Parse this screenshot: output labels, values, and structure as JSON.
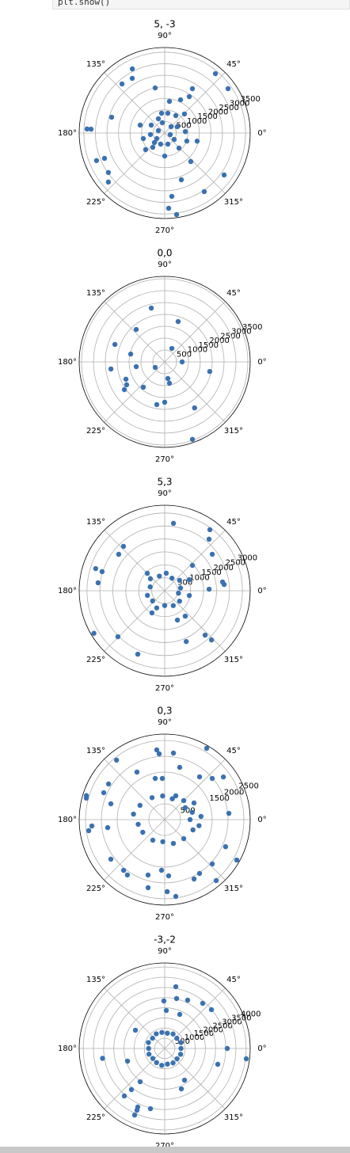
{
  "code_fragment": "plt.show()",
  "chart_data": [
    {
      "type": "polar",
      "title": "5, -3",
      "color": "#3a72b0",
      "rlim": [
        0,
        3700
      ],
      "rticks": [
        500,
        1000,
        1500,
        2000,
        2500,
        3000,
        3500
      ],
      "thetaticks": [
        {
          "value": 0,
          "label": "0°"
        },
        {
          "value": 45,
          "label": "45°"
        },
        {
          "value": 90,
          "label": "90°"
        },
        {
          "value": 135,
          "label": "135°"
        },
        {
          "value": 180,
          "label": "180°"
        },
        {
          "value": 225,
          "label": "225°"
        },
        {
          "value": 270,
          "label": "270°"
        },
        {
          "value": 315,
          "label": "315°"
        }
      ],
      "theta": [
        116.8,
        120.7,
        131,
        101.9,
        58,
        49.5,
        35,
        56,
        64.5,
        81.5,
        163.4,
        177,
        177,
        202,
        202.8,
        215,
        221,
        276.4,
        289.6,
        312.5,
        346,
        304,
        324.8,
        273,
        278.3,
        99,
        81,
        57.5,
        44,
        162,
        149.5,
        194.5,
        230,
        221,
        270,
        313.5,
        340,
        4,
        159.4,
        344,
        326,
        215,
        103,
        45,
        186,
        222.7,
        250,
        286,
        26.6,
        114
      ],
      "r": [
        3110,
        2750,
        2816,
        1995,
        2262,
        3378,
        3346,
        1900,
        1593,
        1385,
        2395,
        3362,
        3190,
        3181,
        2826,
        2975,
        3230,
        2758,
        2146,
        1673,
        1446,
        3060,
        3146,
        3259,
        3565,
        867,
        867,
        894,
        1188,
        1116,
        676,
        956,
        803,
        1093,
        994,
        897,
        1019,
        894,
        293,
        249,
        494,
        418,
        457,
        388,
        620,
        606,
        510,
        499,
        613,
        675
      ]
    },
    {
      "type": "polar",
      "title": "0,0",
      "color": "#3a72b0",
      "rlim": [
        0,
        3600
      ],
      "rticks": [
        500,
        1000,
        1500,
        2000,
        2500,
        3000,
        3500
      ],
      "thetaticks": [
        {
          "value": 0,
          "label": "0°"
        },
        {
          "value": 45,
          "label": "45°"
        },
        {
          "value": 90,
          "label": "90°"
        },
        {
          "value": 135,
          "label": "135°"
        },
        {
          "value": 180,
          "label": "180°"
        },
        {
          "value": 225,
          "label": "225°"
        },
        {
          "value": 270,
          "label": "270°"
        },
        {
          "value": 315,
          "label": "315°"
        }
      ],
      "theta": [
        104,
        71.6,
        131.3,
        160.7,
        167,
        62,
        0,
        348,
        187.5,
        189.5,
        210,
        204,
        211,
        214.5,
        229.8,
        280.8,
        282.5,
        259.5,
        270,
        303,
        289.7
      ],
      "r": [
        2334,
        1791,
        1818,
        2221,
        1469,
        640,
        733,
        1938,
        2284,
        1215,
        463,
        1788,
        1868,
        2061,
        1395,
        713,
        922,
        1828,
        1698,
        2308,
        3463
      ]
    },
    {
      "type": "polar",
      "title": "5,3",
      "color": "#3a72b0",
      "rlim": [
        0,
        3300
      ],
      "rticks": [
        500,
        1000,
        1500,
        2000,
        2500,
        3000
      ],
      "thetaticks": [
        {
          "value": 0,
          "label": "0°"
        },
        {
          "value": 45,
          "label": "45°"
        },
        {
          "value": 90,
          "label": "90°"
        },
        {
          "value": 135,
          "label": "135°"
        },
        {
          "value": 180,
          "label": "180°"
        },
        {
          "value": 225,
          "label": "225°"
        },
        {
          "value": 270,
          "label": "270°"
        },
        {
          "value": 315,
          "label": "315°"
        }
      ],
      "theta": [
        82.6,
        53.5,
        49.3,
        37.5,
        42.4,
        132.9,
        141.6,
        162.2,
        163,
        173.2,
        24.3,
        349,
        2,
        8.6,
        6,
        211,
        224.5,
        247,
        293,
        312.3,
        313.6,
        293.4,
        309,
        135,
        240,
        10,
        35,
        60,
        85,
        110,
        140,
        165,
        195,
        220,
        245,
        270,
        300,
        325,
        350
      ],
      "r": [
        2623,
        2931,
        2625,
        2313,
        1451,
        2338,
        2265,
        2797,
        2527,
        2589,
        1041,
        967,
        1714,
        2258,
        2307,
        3186,
        2531,
        2659,
        2127,
        2316,
        2619,
        1233,
        1261,
        952,
        986,
        620,
        700,
        560,
        680,
        600,
        720,
        580,
        690,
        610,
        730,
        570,
        660,
        700,
        540
      ]
    },
    {
      "type": "polar",
      "title": "0,3",
      "color": "#3a72b0",
      "rlim": [
        0,
        2700
      ],
      "rticks": [
        500,
        1500,
        2000,
        2500
      ],
      "thetaticks": [
        {
          "value": 0,
          "label": "0°"
        },
        {
          "value": 45,
          "label": "45°"
        },
        {
          "value": 90,
          "label": "90°"
        },
        {
          "value": 135,
          "label": "135°"
        },
        {
          "value": 180,
          "label": "180°"
        },
        {
          "value": 225,
          "label": "225°"
        },
        {
          "value": 270,
          "label": "270°"
        },
        {
          "value": 315,
          "label": "315°"
        }
      ],
      "theta": [
        96.5,
        94.8,
        82.5,
        59.5,
        129,
        74,
        120.3,
        50.8,
        40.9,
        36,
        147.6,
        156.2,
        163,
        164.7,
        163.6,
        103,
        93.3,
        65,
        29.6,
        5.6,
        185,
        188.3,
        188,
        216.3,
        231,
        236,
        266.4,
        274,
        253.3,
        256.3,
        272,
        278.2,
        302.9,
        296.3,
        317,
        336,
        330.7,
        310.2,
        0,
        15,
        30,
        45,
        70,
        95,
        120,
        150,
        170,
        190,
        210,
        240,
        265,
        290,
        315,
        340,
        350,
        5
      ],
      "r": [
        2215,
        2083,
        2118,
        2611,
        2417,
        1717,
        1737,
        1741,
        1985,
        2290,
        2101,
        2104,
        2586,
        2566,
        1772,
        1334,
        1302,
        828,
        1064,
        2035,
        2309,
        2425,
        1817,
        2110,
        2061,
        2108,
        1603,
        1779,
        1827,
        2213,
        2276,
        2450,
        2025,
        2091,
        2052,
        2104,
        2608,
        2519,
        800,
        900,
        750,
        850,
        700,
        750,
        800,
        900,
        1000,
        850,
        800,
        750,
        700,
        800,
        850,
        950,
        1100,
        1150
      ]
    },
    {
      "type": "polar",
      "title": "-3,-2",
      "color": "#3a72b0",
      "rlim": [
        0,
        4200
      ],
      "rticks": [
        500,
        1000,
        1500,
        2000,
        2500,
        3000,
        3500,
        4000
      ],
      "thetaticks": [
        {
          "value": 0,
          "label": "0°"
        },
        {
          "value": 45,
          "label": "45°"
        },
        {
          "value": 90,
          "label": "90°"
        },
        {
          "value": 135,
          "label": "135°"
        },
        {
          "value": 180,
          "label": "180°"
        },
        {
          "value": 225,
          "label": "225°"
        },
        {
          "value": 270,
          "label": "270°"
        },
        {
          "value": 315,
          "label": "315°"
        }
      ],
      "theta": [
        79.8,
        91,
        76.6,
        64.6,
        49.9,
        39.7,
        66.2,
        87.6,
        148,
        0,
        352.8,
        189,
        198.8,
        343.4,
        233.6,
        302,
        292.4,
        231,
        229.6,
        245.3,
        256.7,
        245.8,
        245.7,
        0,
        20,
        40,
        60,
        80,
        100,
        120,
        140,
        160,
        180,
        200,
        220,
        240,
        260,
        280,
        300,
        320,
        340
      ],
      "r": [
        3081,
        2334,
        2521,
        2626,
        2898,
        2984,
        1828,
        1867,
        1696,
        3073,
        4038,
        3089,
        1929,
        2719,
        2031,
        1836,
        2147,
        2599,
        3061,
        3166,
        3038,
        3326,
        3587,
        800,
        850,
        780,
        820,
        760,
        800,
        830,
        780,
        850,
        790,
        820,
        760,
        800,
        840,
        780,
        820,
        790,
        830
      ]
    }
  ]
}
